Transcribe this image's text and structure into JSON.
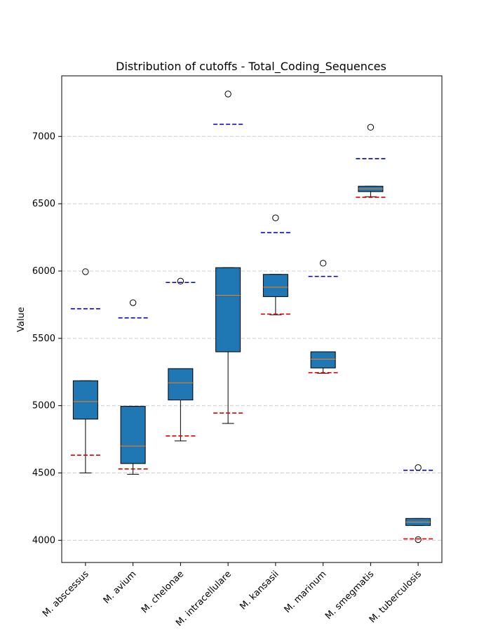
{
  "chart_data": {
    "type": "box",
    "title": "Distribution of cutoffs - Total_Coding_Sequences",
    "xlabel": "",
    "ylabel": "Value",
    "ylim": [
      3835,
      7450
    ],
    "yticks": [
      4000,
      4500,
      5000,
      5500,
      6000,
      6500,
      7000
    ],
    "grid": "horizontal-dashed",
    "colors": {
      "box_fill": "#1f77b4",
      "median": "#ff7f0e",
      "upper_cutoff": "#0000cc",
      "lower_cutoff": "#dd0000",
      "grid": "#cccccc"
    },
    "categories": [
      "M. abscessus",
      "M. avium",
      "M. chelonae",
      "M. intracellulare",
      "M. kansasii",
      "M. marinum",
      "M. smegmatis",
      "M. tuberculosis"
    ],
    "boxes": [
      {
        "whislo": 4500,
        "q1": 4900,
        "median": 5030,
        "q3": 5185,
        "whishi": 5185,
        "fliers": [
          5995
        ],
        "upper_cutoff": 5720,
        "lower_cutoff": 4632
      },
      {
        "whislo": 4490,
        "q1": 4570,
        "median": 4700,
        "q3": 4995,
        "whishi": 4995,
        "fliers": [
          5765
        ],
        "upper_cutoff": 5652,
        "lower_cutoff": 4530
      },
      {
        "whislo": 4738,
        "q1": 5042,
        "median": 5170,
        "q3": 5275,
        "whishi": 5275,
        "fliers": [
          5925
        ],
        "upper_cutoff": 5915,
        "lower_cutoff": 4775
      },
      {
        "whislo": 4868,
        "q1": 5400,
        "median": 5820,
        "q3": 6025,
        "whishi": 6025,
        "fliers": [
          7315
        ],
        "upper_cutoff": 7090,
        "lower_cutoff": 4945
      },
      {
        "whislo": 5675,
        "q1": 5810,
        "median": 5880,
        "q3": 5975,
        "whishi": 5975,
        "fliers": [
          6395
        ],
        "upper_cutoff": 6285,
        "lower_cutoff": 5680
      },
      {
        "whislo": 5240,
        "q1": 5280,
        "median": 5345,
        "q3": 5400,
        "whishi": 5400,
        "fliers": [
          6058
        ],
        "upper_cutoff": 5960,
        "lower_cutoff": 5245
      },
      {
        "whislo": 6552,
        "q1": 6590,
        "median": 6610,
        "q3": 6630,
        "whishi": 6630,
        "fliers": [
          7068
        ],
        "upper_cutoff": 6835,
        "lower_cutoff": 6548
      },
      {
        "whislo": 4110,
        "q1": 4110,
        "median": 4135,
        "q3": 4162,
        "whishi": 4162,
        "fliers": [
          4540,
          4005
        ],
        "upper_cutoff": 4520,
        "lower_cutoff": 4010
      }
    ]
  }
}
